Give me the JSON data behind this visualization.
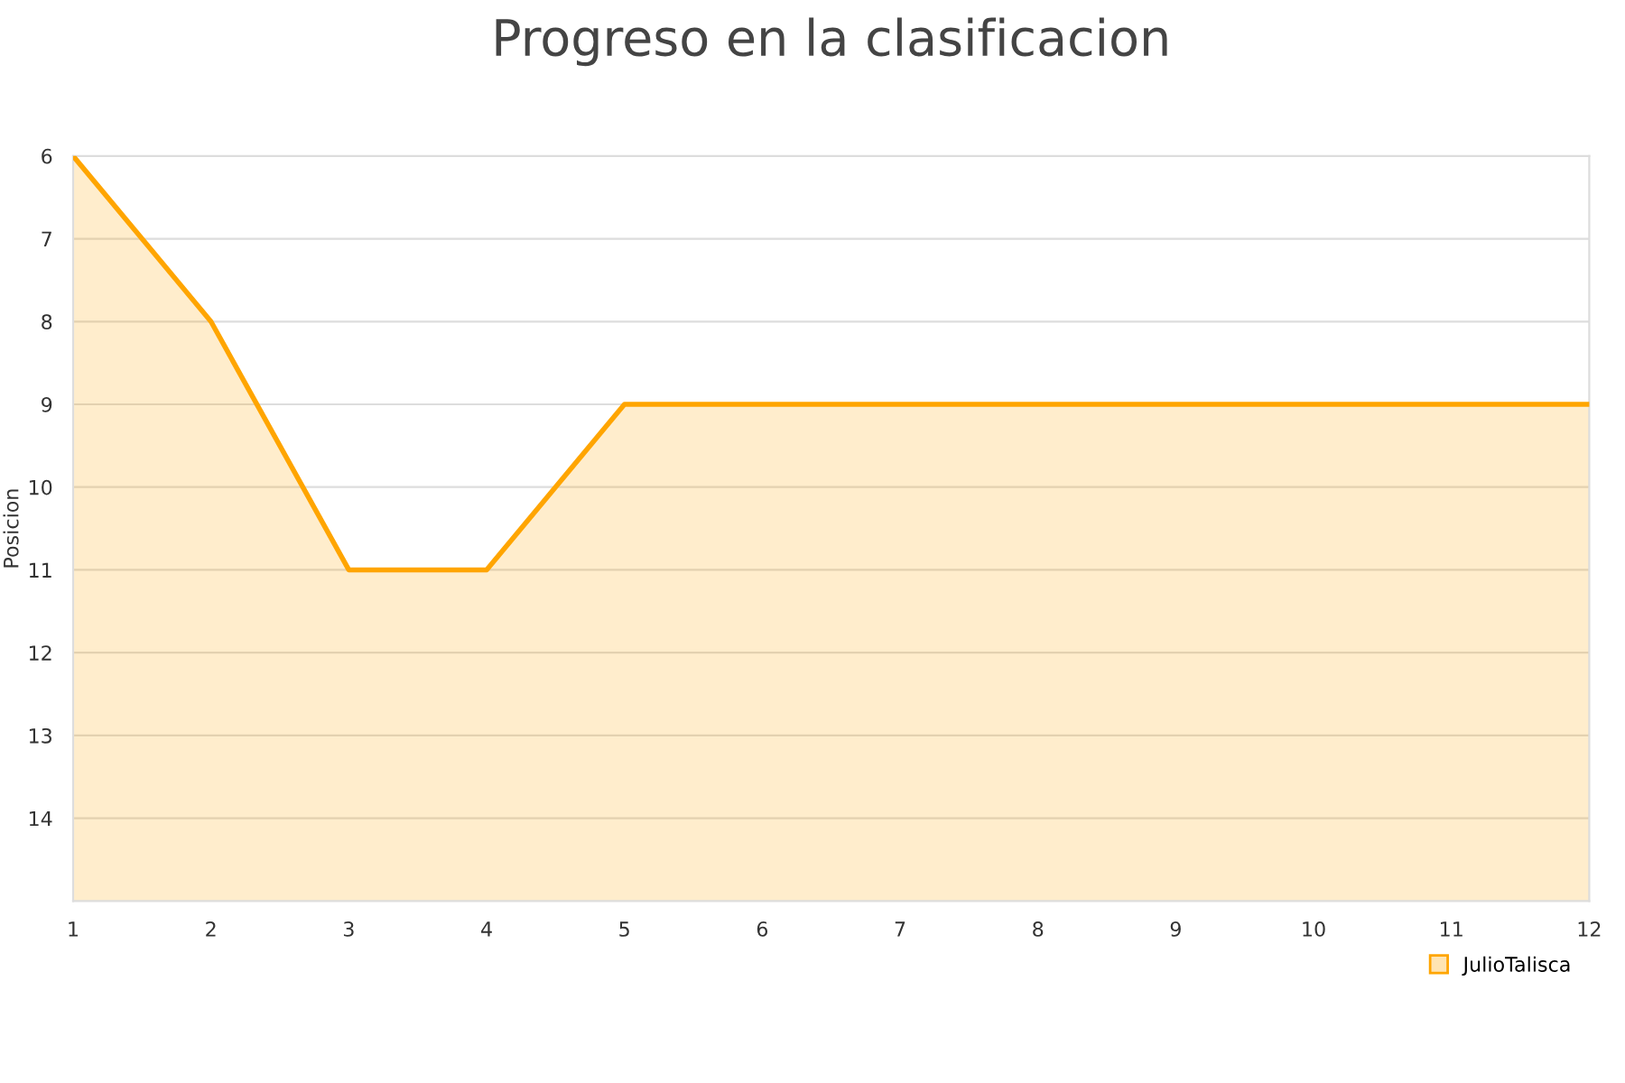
{
  "chart_data": {
    "type": "area",
    "title": "Progreso en la clasificacion",
    "ylabel": "Posicion",
    "x": [
      1,
      2,
      3,
      4,
      5,
      6,
      7,
      8,
      9,
      10,
      11,
      12
    ],
    "series": [
      {
        "name": "JulioTalisca",
        "color": "#ffa500",
        "values": [
          6,
          8,
          11,
          11,
          9,
          9,
          9,
          9,
          9,
          9,
          9,
          9
        ]
      }
    ],
    "xlim": [
      1,
      12
    ],
    "xticks": [
      1,
      2,
      3,
      4,
      5,
      6,
      7,
      8,
      9,
      10,
      11,
      12
    ],
    "ylim": [
      15,
      6
    ],
    "yticks": [
      6,
      7,
      8,
      9,
      10,
      11,
      12,
      13,
      14
    ],
    "grid": "y",
    "legend": "bottom right"
  }
}
